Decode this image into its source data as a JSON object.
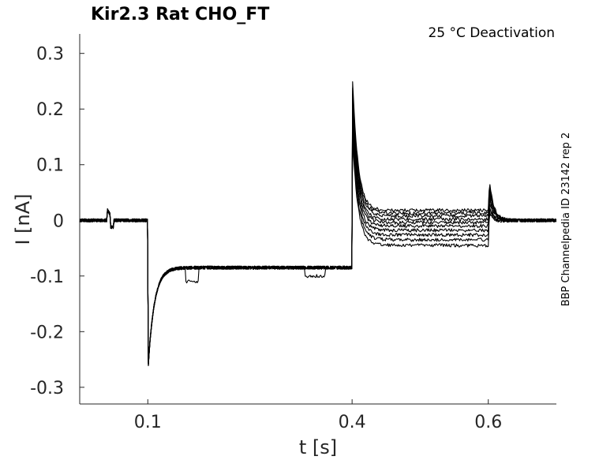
{
  "chart_data": {
    "type": "line",
    "title": "Kir2.3  Rat  CHO_FT",
    "annotation": "25 °C  Deactivation",
    "side_label": "BBP Channelpedia ID 23142 rep 2",
    "xlabel": "t [s]",
    "ylabel": "I [nA]",
    "xlim": [
      0.0,
      0.7
    ],
    "ylim": [
      -0.33,
      0.335
    ],
    "x_ticks": [
      0.1,
      0.4,
      0.6
    ],
    "x_tick_labels": [
      "0.1",
      "0.4",
      "0.6"
    ],
    "y_ticks": [
      0.3,
      0.2,
      0.1,
      0,
      -0.1,
      -0.2,
      -0.3
    ],
    "y_tick_labels": [
      "0.3",
      "0.2",
      "0.1",
      "0",
      "-0.1",
      "-0.2",
      "-0.3"
    ],
    "grid": false,
    "legend": "none",
    "series": [
      {
        "steady_end": 0.018,
        "peak_end": 0.275,
        "tail_peak": 0.095
      },
      {
        "steady_end": 0.013,
        "peak_end": 0.262,
        "tail_peak": 0.088
      },
      {
        "steady_end": 0.008,
        "peak_end": 0.25,
        "tail_peak": 0.08
      },
      {
        "steady_end": 0.002,
        "peak_end": 0.238,
        "tail_peak": 0.072
      },
      {
        "steady_end": -0.004,
        "peak_end": 0.226,
        "tail_peak": 0.064
      },
      {
        "steady_end": -0.01,
        "peak_end": 0.214,
        "tail_peak": 0.056
      },
      {
        "steady_end": -0.018,
        "peak_end": 0.202,
        "tail_peak": 0.048
      },
      {
        "steady_end": -0.026,
        "peak_end": 0.19,
        "tail_peak": 0.04
      },
      {
        "steady_end": -0.035,
        "peak_end": 0.178,
        "tail_peak": 0.032
      },
      {
        "steady_end": -0.045,
        "peak_end": 0.166,
        "tail_peak": 0.024
      }
    ]
  }
}
